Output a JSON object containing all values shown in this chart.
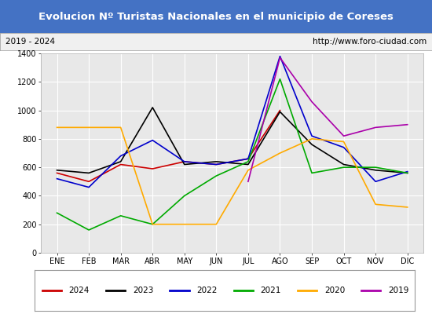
{
  "title": "Evolucion Nº Turistas Nacionales en el municipio de Coreses",
  "subtitle_left": "2019 - 2024",
  "subtitle_right": "http://www.foro-ciudad.com",
  "months": [
    "ENE",
    "FEB",
    "MAR",
    "ABR",
    "MAY",
    "JUN",
    "JUL",
    "AGO",
    "SEP",
    "OCT",
    "NOV",
    "DIC"
  ],
  "ylim": [
    0,
    1400
  ],
  "yticks": [
    0,
    200,
    400,
    600,
    800,
    1000,
    1200,
    1400
  ],
  "series": {
    "2024": {
      "color": "#cc0000",
      "data": [
        560,
        500,
        620,
        590,
        640,
        620,
        660,
        1000,
        null,
        null,
        null,
        null
      ]
    },
    "2023": {
      "color": "#000000",
      "data": [
        580,
        560,
        640,
        1020,
        620,
        640,
        620,
        990,
        760,
        620,
        580,
        560
      ]
    },
    "2022": {
      "color": "#0000cc",
      "data": [
        520,
        460,
        680,
        790,
        640,
        620,
        660,
        1380,
        820,
        740,
        500,
        570
      ]
    },
    "2021": {
      "color": "#00aa00",
      "data": [
        280,
        160,
        260,
        200,
        400,
        540,
        640,
        1220,
        560,
        600,
        600,
        560
      ]
    },
    "2020": {
      "color": "#ffaa00",
      "data": [
        880,
        880,
        880,
        200,
        200,
        200,
        580,
        700,
        800,
        780,
        340,
        320
      ]
    },
    "2019": {
      "color": "#aa00aa",
      "data": [
        null,
        null,
        null,
        null,
        null,
        null,
        500,
        1370,
        1060,
        820,
        880,
        900
      ]
    }
  },
  "title_bg": "#4472c4",
  "title_color": "#ffffff",
  "subtitle_bg": "#f0f0f0",
  "plot_bg": "#e8e8e8",
  "grid_color": "#ffffff"
}
